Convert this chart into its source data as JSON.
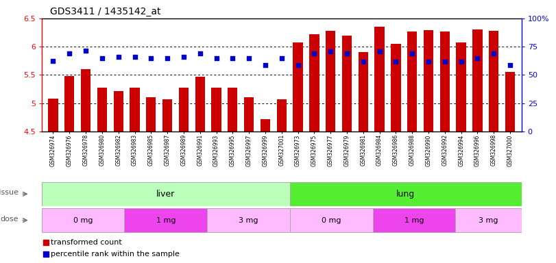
{
  "title": "GDS3411 / 1435142_at",
  "samples": [
    "GSM326974",
    "GSM326976",
    "GSM326978",
    "GSM326980",
    "GSM326982",
    "GSM326983",
    "GSM326985",
    "GSM326987",
    "GSM326989",
    "GSM326991",
    "GSM326993",
    "GSM326995",
    "GSM326997",
    "GSM326999",
    "GSM327001",
    "GSM326973",
    "GSM326975",
    "GSM326977",
    "GSM326979",
    "GSM326981",
    "GSM326984",
    "GSM326986",
    "GSM326988",
    "GSM326990",
    "GSM326992",
    "GSM326994",
    "GSM326996",
    "GSM326998",
    "GSM327000"
  ],
  "bar_values": [
    5.08,
    5.48,
    5.6,
    5.28,
    5.22,
    5.28,
    5.1,
    5.07,
    5.28,
    5.47,
    5.27,
    5.28,
    5.1,
    4.72,
    5.07,
    6.07,
    6.22,
    6.28,
    6.2,
    5.9,
    6.35,
    6.05,
    6.27,
    6.29,
    6.27,
    6.07,
    6.3,
    6.28,
    5.55
  ],
  "dot_pct": [
    62.5,
    69.0,
    71.5,
    65.0,
    66.0,
    66.0,
    65.0,
    65.0,
    66.0,
    69.0,
    65.0,
    65.0,
    65.0,
    58.5,
    65.0,
    58.5,
    69.0,
    71.0,
    69.0,
    62.0,
    71.0,
    62.0,
    69.0,
    61.5,
    62.0,
    62.0,
    65.0,
    69.0,
    59.0
  ],
  "ylim_left": [
    4.5,
    6.5
  ],
  "ylim_right": [
    0,
    100
  ],
  "yticks_left": [
    4.5,
    5.0,
    5.5,
    6.0,
    6.5
  ],
  "ytick_left_labels": [
    "4.5",
    "5",
    "5.5",
    "6",
    "6.5"
  ],
  "yticks_right": [
    0,
    25,
    50,
    75,
    100
  ],
  "ytick_right_labels": [
    "0",
    "25",
    "50",
    "75",
    "100%"
  ],
  "bar_color": "#cc0000",
  "dot_color": "#0000cc",
  "gridlines": [
    5.0,
    5.5,
    6.0
  ],
  "tissue_liver_count": 15,
  "tissue_lung_count": 14,
  "tissue_liver_label": "liver",
  "tissue_lung_label": "lung",
  "tissue_liver_color": "#bbffbb",
  "tissue_lung_color": "#55ee33",
  "dose_groups": [
    {
      "label": "0 mg",
      "count": 5,
      "color": "#ffbbff"
    },
    {
      "label": "1 mg",
      "count": 5,
      "color": "#ee44ee"
    },
    {
      "label": "3 mg",
      "count": 5,
      "color": "#ffbbff"
    },
    {
      "label": "0 mg",
      "count": 5,
      "color": "#ffbbff"
    },
    {
      "label": "1 mg",
      "count": 5,
      "color": "#ee44ee"
    },
    {
      "label": "3 mg",
      "count": 4,
      "color": "#ffbbff"
    }
  ],
  "legend_bar_label": "transformed count",
  "legend_dot_label": "percentile rank within the sample",
  "xtick_bg_color": "#dddddd"
}
